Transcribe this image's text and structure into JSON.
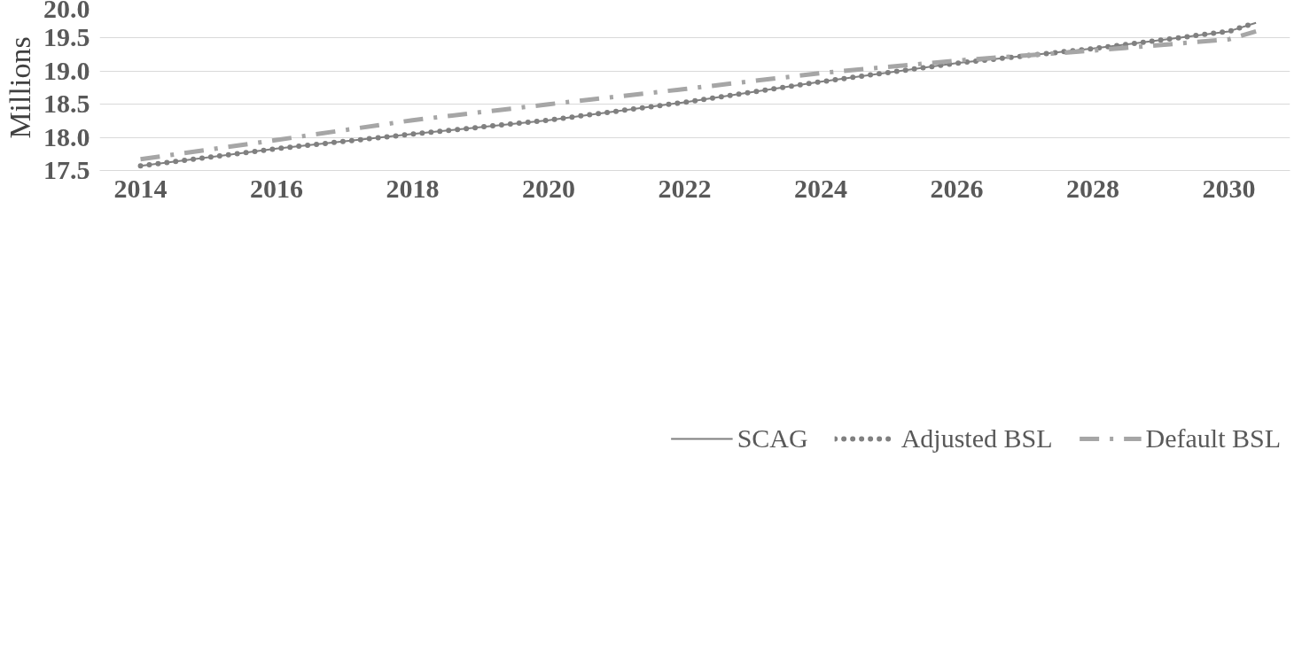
{
  "chart_data": {
    "type": "line",
    "ylabel": "Millions",
    "x": [
      2014,
      2016,
      2018,
      2020,
      2022,
      2024,
      2026,
      2028,
      2030,
      2030.4
    ],
    "series": [
      {
        "name": "SCAG",
        "color": "#7f7f7f",
        "line_style": "solid",
        "values": [
          17.57,
          17.83,
          18.05,
          18.26,
          18.53,
          18.84,
          19.12,
          19.34,
          19.6,
          19.73
        ]
      },
      {
        "name": "Adjusted BSL",
        "color": "#808080",
        "line_style": "dotted",
        "values": [
          17.57,
          17.83,
          18.05,
          18.26,
          18.53,
          18.84,
          19.12,
          19.34,
          19.6,
          19.73
        ]
      },
      {
        "name": "Default BSL",
        "color": "#a6a6a6",
        "line_style": "dashed",
        "values": [
          17.67,
          17.96,
          18.26,
          18.5,
          18.73,
          18.97,
          19.16,
          19.31,
          19.48,
          19.6
        ]
      }
    ],
    "xlim": [
      2013.4,
      2030.9
    ],
    "xticks": [
      2014,
      2016,
      2018,
      2020,
      2022,
      2024,
      2026,
      2028,
      2030
    ],
    "ylim": [
      17.5,
      20.0
    ],
    "yticks": [
      {
        "value": 17.5,
        "label": "17.5"
      },
      {
        "value": 18.0,
        "label": "18.0"
      },
      {
        "value": 18.5,
        "label": "18.5"
      },
      {
        "value": 19.0,
        "label": "19.0"
      },
      {
        "value": 19.5,
        "label": "19.5"
      },
      {
        "value": 20.0,
        "label": "20.0"
      }
    ],
    "grid": "y",
    "legend": "bottom"
  }
}
